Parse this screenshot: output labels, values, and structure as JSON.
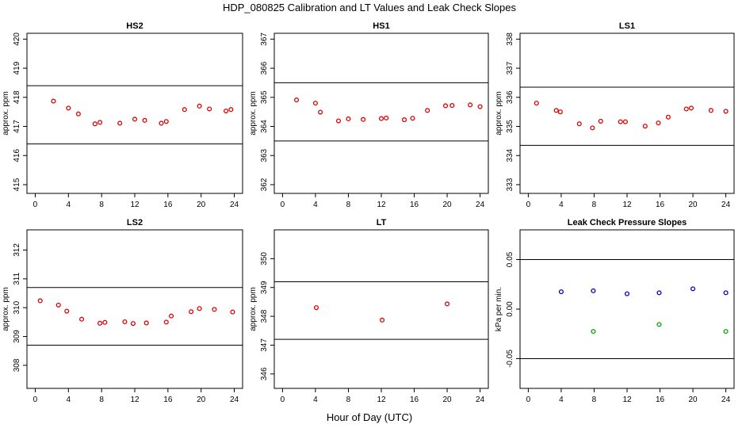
{
  "figure": {
    "title": "HDP_080825  Calibration and LT Values and Leak Check Slopes",
    "xlabel": "Hour of Day (UTC)"
  },
  "chart_data": [
    {
      "type": "scatter",
      "title": "HS2",
      "xlabel": "",
      "ylabel": "approx. ppm",
      "xlim": [
        -1,
        25
      ],
      "ylim": [
        414.7,
        420.2
      ],
      "xticks": [
        0,
        4,
        8,
        12,
        16,
        20,
        24
      ],
      "yticks": [
        415,
        416,
        417,
        418,
        419,
        420
      ],
      "hlines": [
        418.4,
        416.4
      ],
      "series": [
        {
          "color": "#dd0000",
          "points": [
            [
              2.2,
              417.87
            ],
            [
              4.0,
              417.63
            ],
            [
              5.2,
              417.43
            ],
            [
              7.2,
              417.09
            ],
            [
              7.8,
              417.14
            ],
            [
              10.2,
              417.11
            ],
            [
              12.0,
              417.25
            ],
            [
              13.2,
              417.21
            ],
            [
              15.2,
              417.11
            ],
            [
              15.8,
              417.17
            ],
            [
              18.0,
              417.58
            ],
            [
              19.8,
              417.7
            ],
            [
              21.0,
              417.6
            ],
            [
              23.0,
              417.53
            ],
            [
              23.6,
              417.58
            ]
          ]
        }
      ]
    },
    {
      "type": "scatter",
      "title": "HS1",
      "xlabel": "",
      "ylabel": "approx. ppm",
      "xlim": [
        -1,
        25
      ],
      "ylim": [
        361.7,
        367.2
      ],
      "xticks": [
        0,
        4,
        8,
        12,
        16,
        20,
        24
      ],
      "yticks": [
        362,
        363,
        364,
        365,
        366,
        367
      ],
      "hlines": [
        365.5,
        363.5
      ],
      "series": [
        {
          "color": "#dd0000",
          "points": [
            [
              1.7,
              364.91
            ],
            [
              4.0,
              364.8
            ],
            [
              4.6,
              364.49
            ],
            [
              6.8,
              364.19
            ],
            [
              8.0,
              364.26
            ],
            [
              9.8,
              364.24
            ],
            [
              12.0,
              364.27
            ],
            [
              12.6,
              364.29
            ],
            [
              14.8,
              364.23
            ],
            [
              15.8,
              364.28
            ],
            [
              17.6,
              364.55
            ],
            [
              19.8,
              364.71
            ],
            [
              20.6,
              364.72
            ],
            [
              22.8,
              364.74
            ],
            [
              24.0,
              364.68
            ]
          ]
        }
      ]
    },
    {
      "type": "scatter",
      "title": "LS1",
      "xlabel": "",
      "ylabel": "approx. ppm",
      "xlim": [
        -1,
        25
      ],
      "ylim": [
        332.7,
        338.2
      ],
      "xticks": [
        0,
        4,
        8,
        12,
        16,
        20,
        24
      ],
      "yticks": [
        333,
        334,
        335,
        336,
        337,
        338
      ],
      "hlines": [
        336.35,
        334.35
      ],
      "series": [
        {
          "color": "#dd0000",
          "points": [
            [
              1.0,
              335.8
            ],
            [
              3.4,
              335.55
            ],
            [
              3.9,
              335.5
            ],
            [
              6.2,
              335.09
            ],
            [
              7.8,
              334.95
            ],
            [
              8.8,
              335.18
            ],
            [
              11.2,
              335.16
            ],
            [
              11.8,
              335.16
            ],
            [
              14.2,
              335.01
            ],
            [
              15.8,
              335.12
            ],
            [
              17.0,
              335.32
            ],
            [
              19.2,
              335.6
            ],
            [
              19.8,
              335.63
            ],
            [
              22.2,
              335.55
            ],
            [
              24.0,
              335.52
            ]
          ]
        }
      ]
    },
    {
      "type": "scatter",
      "title": "LS2",
      "xlabel": "",
      "ylabel": "approx. ppm",
      "xlim": [
        -1,
        25
      ],
      "ylim": [
        307.2,
        312.7
      ],
      "xticks": [
        0,
        4,
        8,
        12,
        16,
        20,
        24
      ],
      "yticks": [
        308,
        309,
        310,
        311,
        312
      ],
      "hlines": [
        310.7,
        308.7
      ],
      "series": [
        {
          "color": "#dd0000",
          "points": [
            [
              0.6,
              310.24
            ],
            [
              2.8,
              310.09
            ],
            [
              3.8,
              309.88
            ],
            [
              5.6,
              309.6
            ],
            [
              7.8,
              309.46
            ],
            [
              8.4,
              309.49
            ],
            [
              10.8,
              309.51
            ],
            [
              11.8,
              309.45
            ],
            [
              13.4,
              309.47
            ],
            [
              15.8,
              309.5
            ],
            [
              16.4,
              309.71
            ],
            [
              18.8,
              309.86
            ],
            [
              19.8,
              309.97
            ],
            [
              21.6,
              309.94
            ],
            [
              23.8,
              309.85
            ]
          ]
        }
      ]
    },
    {
      "type": "scatter",
      "title": "LT",
      "xlabel": "",
      "ylabel": "approx. ppm",
      "xlim": [
        -1,
        25
      ],
      "ylim": [
        345.5,
        351.0
      ],
      "xticks": [
        0,
        4,
        8,
        12,
        16,
        20,
        24
      ],
      "yticks": [
        346,
        347,
        348,
        349,
        350
      ],
      "hlines": [
        349.2,
        347.2
      ],
      "series": [
        {
          "color": "#dd0000",
          "points": [
            [
              4.1,
              348.3
            ],
            [
              12.1,
              347.87
            ],
            [
              20.0,
              348.43
            ]
          ]
        }
      ]
    },
    {
      "type": "scatter",
      "title": "Leak Check Pressure Slopes",
      "xlabel": "",
      "ylabel": "kPa per min.",
      "xlim": [
        -1,
        25
      ],
      "ylim": [
        -0.08,
        0.08
      ],
      "xticks": [
        0,
        4,
        8,
        12,
        16,
        20,
        24
      ],
      "yticks": [
        -0.05,
        0.0,
        0.05
      ],
      "ytick_labels": [
        "-0.05",
        "0.00",
        "0.05"
      ],
      "hlines": [
        0.05,
        -0.05
      ],
      "series": [
        {
          "color": "#0000cc",
          "points": [
            [
              4.0,
              0.0175
            ],
            [
              7.9,
              0.0185
            ],
            [
              12.0,
              0.0155
            ],
            [
              15.9,
              0.0165
            ],
            [
              20.0,
              0.0205
            ],
            [
              24.0,
              0.0165
            ]
          ]
        },
        {
          "color": "#00aa00",
          "points": [
            [
              7.9,
              -0.0225
            ],
            [
              15.9,
              -0.0155
            ],
            [
              24.0,
              -0.0225
            ]
          ]
        }
      ]
    }
  ]
}
